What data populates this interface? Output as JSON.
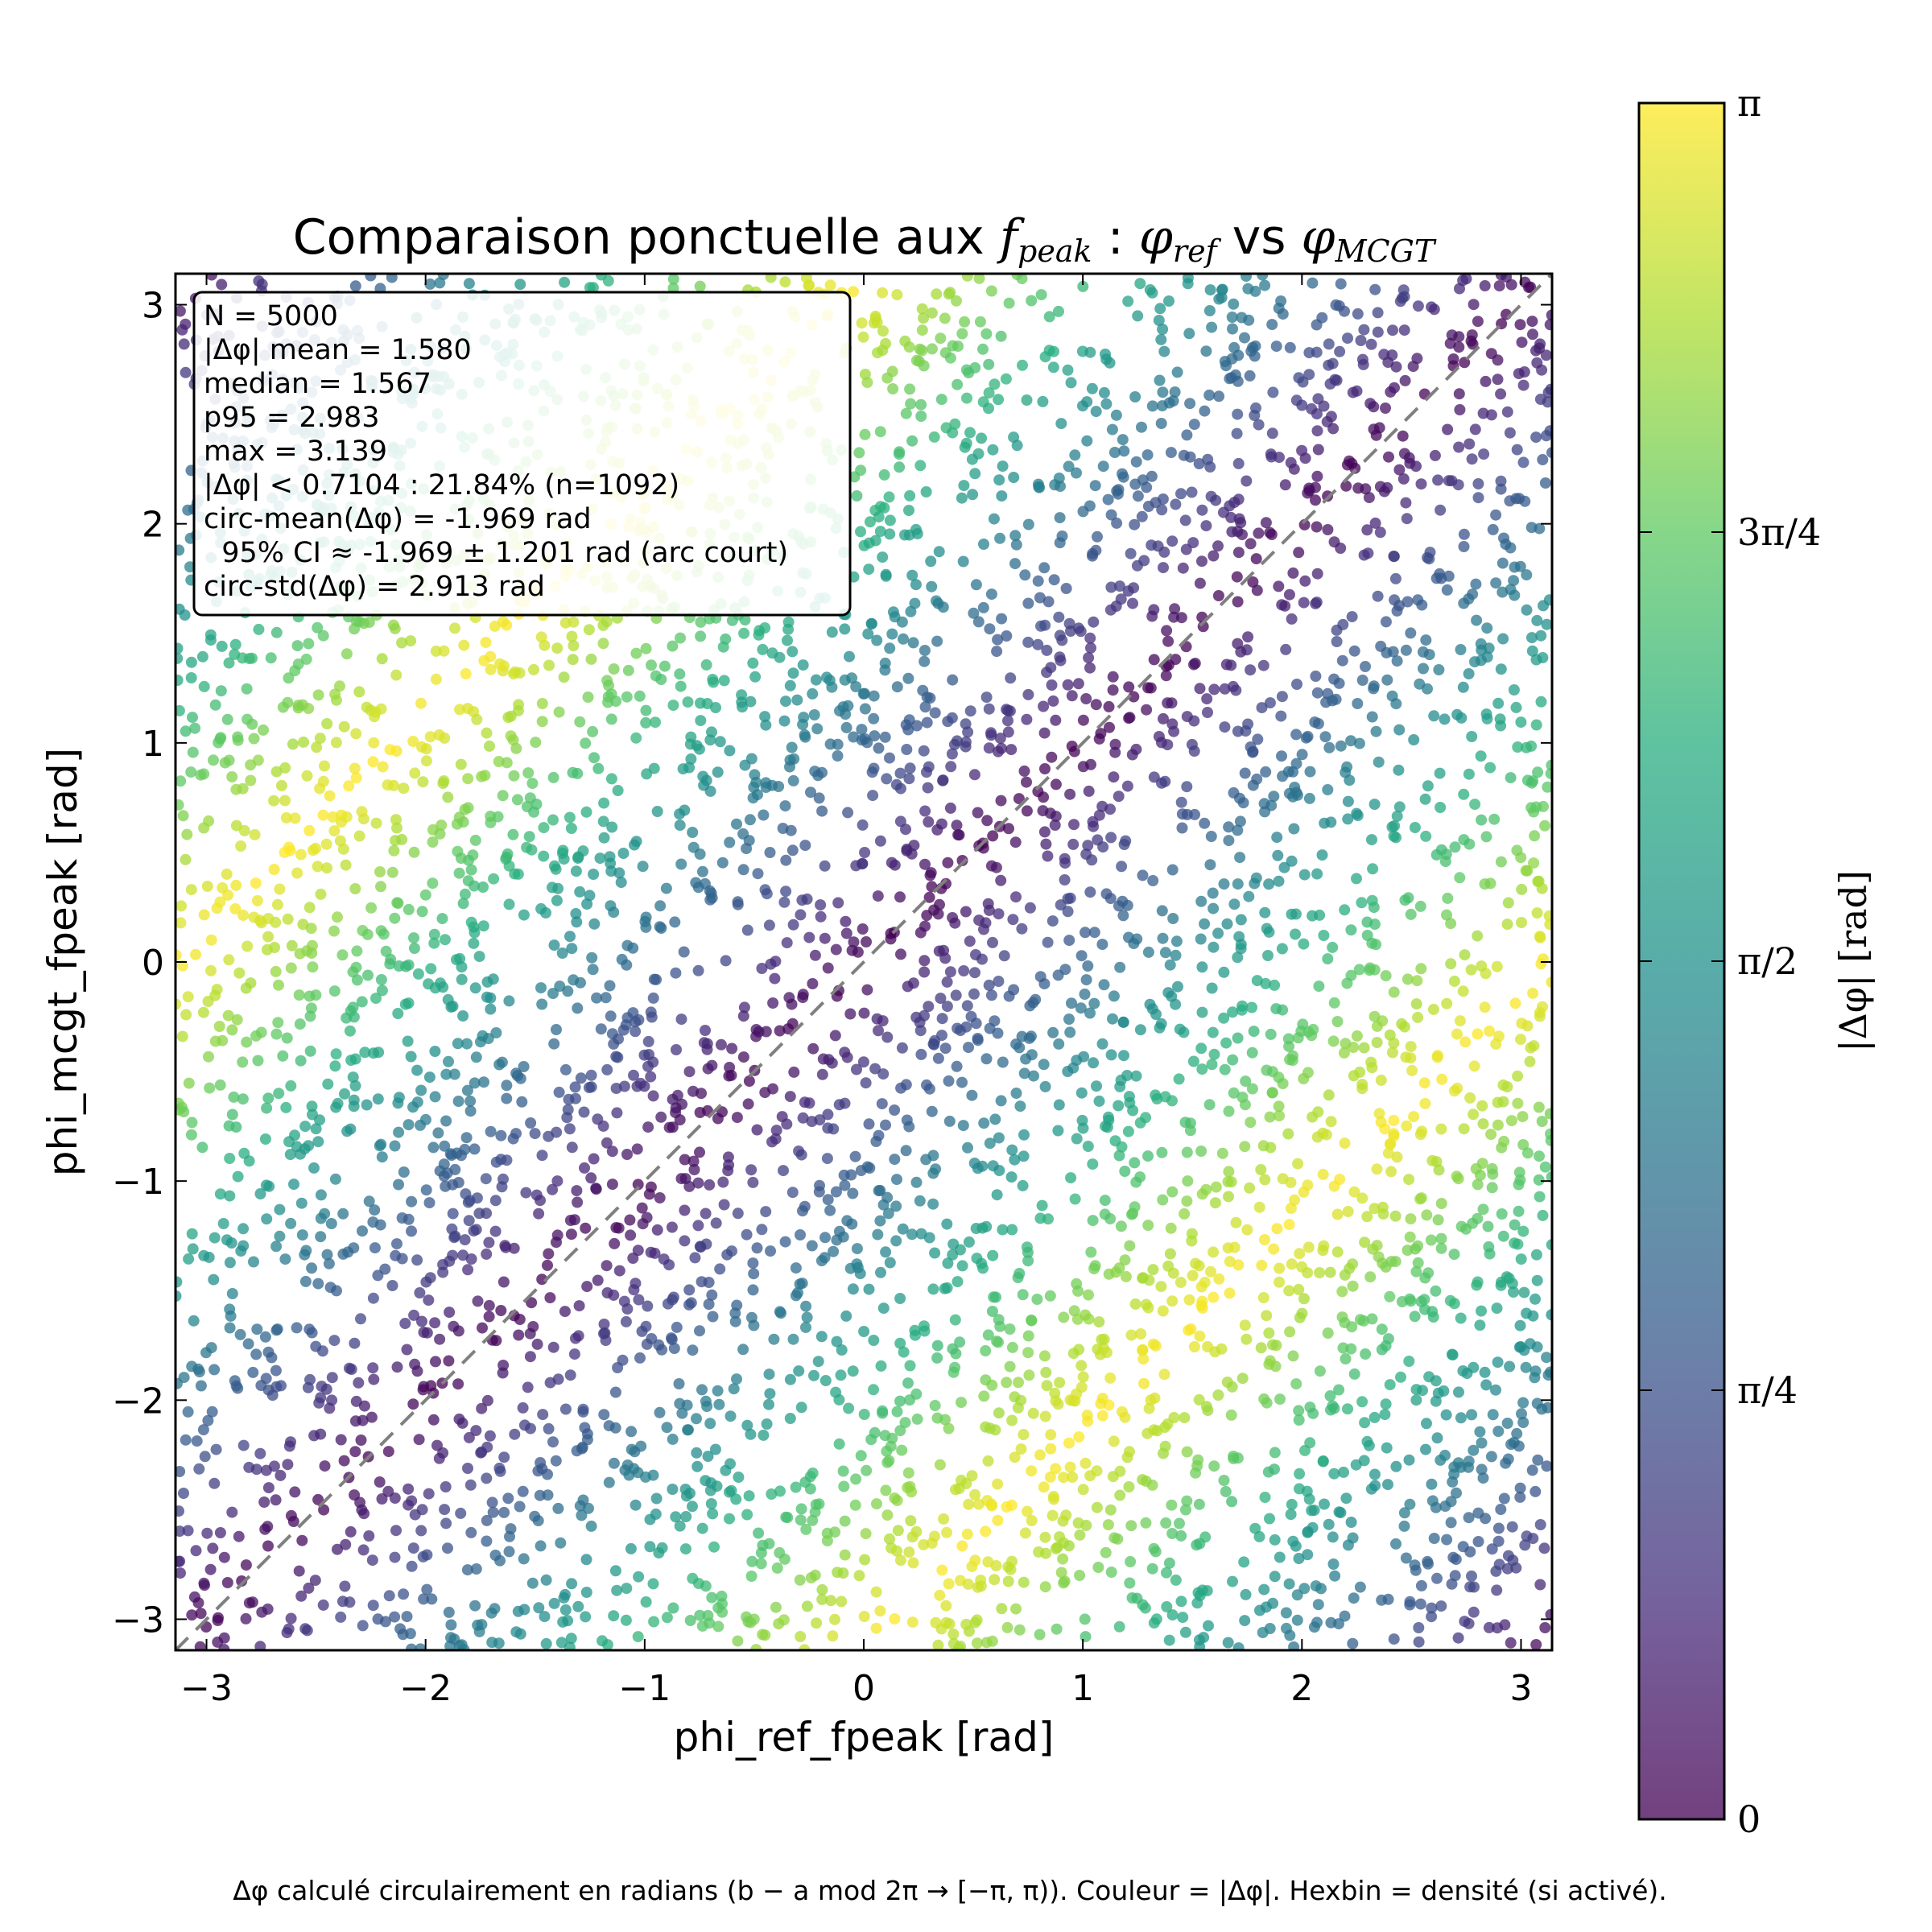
{
  "chart_data": {
    "type": "scatter",
    "title": {
      "prefix": "Comparaison ponctuelle aux ",
      "math1": "f",
      "math1_sub": "peak",
      "sep": " : ",
      "math2": "φ",
      "math2_sub": "ref",
      "mid": " vs ",
      "math3": "φ",
      "math3_sub": "MCGT"
    },
    "xlabel": "phi_ref_fpeak [rad]",
    "ylabel": "phi_mcgt_fpeak [rad]",
    "xlim": [
      -3.14159,
      3.14159
    ],
    "ylim": [
      -3.14159,
      3.14159
    ],
    "xticks": [
      -3,
      -2,
      -1,
      0,
      1,
      2,
      3
    ],
    "yticks": [
      -3,
      -2,
      -1,
      0,
      1,
      2,
      3
    ],
    "xtick_labels": [
      "−3",
      "−2",
      "−1",
      "0",
      "1",
      "2",
      "3"
    ],
    "ytick_labels": [
      "−3",
      "−2",
      "−1",
      "0",
      "1",
      "2",
      "3"
    ],
    "reference_line": "y = x (dashed grey)",
    "n_points": 5000,
    "color_variable": "|Δφ| = |wrap(φ_mcgt − φ_ref)|",
    "colormap": "viridis",
    "point_alpha": 0.75,
    "colorbar": {
      "label": "|Δφ| [rad]",
      "range": [
        0,
        3.14159
      ],
      "ticks": [
        0,
        0.7854,
        1.5708,
        2.3562,
        3.14159
      ],
      "tick_labels": [
        "0",
        "π/4",
        "π/2",
        "3π/4",
        "π"
      ]
    },
    "stats_box": [
      "N = 5000",
      "|Δφ| mean = 1.580",
      "median = 1.567",
      "p95 = 2.983",
      "max = 3.139",
      "|Δφ| < 0.7104 : 21.84% (n=1092)",
      "circ-mean(Δφ) = -1.969 rad",
      "  95% CI ≈ -1.969 ± 1.201 rad (arc court)",
      "circ-std(Δφ) = 2.913 rad"
    ],
    "caption": "Δφ calculé circulairement en radians (b − a mod 2π → [−π, π)). Couleur = |Δφ|. Hexbin = densité (si activé).",
    "grid": false,
    "legend": "none"
  }
}
